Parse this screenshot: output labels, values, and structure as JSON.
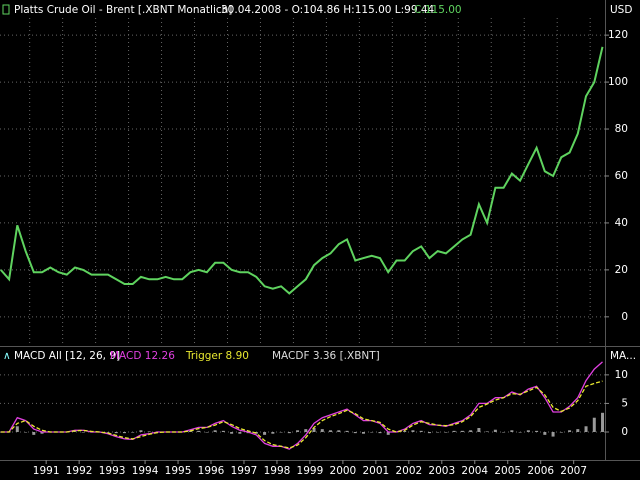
{
  "chart_data": [
    {
      "type": "line",
      "title": "Platts Crude Oil - Brent [.XBNT  Monatlich]",
      "quote": "30.04.2008 - O:104.86 H:115.00 L:99.44",
      "quote_close": "C:115.00",
      "y_label": "USD",
      "x": [
        1990.125,
        1990.375,
        1990.625,
        1990.875,
        1991.125,
        1991.375,
        1991.625,
        1991.875,
        1992.125,
        1992.375,
        1992.625,
        1992.875,
        1993.125,
        1993.375,
        1993.625,
        1993.875,
        1994.125,
        1994.375,
        1994.625,
        1994.875,
        1995.125,
        1995.375,
        1995.625,
        1995.875,
        1996.125,
        1996.375,
        1996.625,
        1996.875,
        1997.125,
        1997.375,
        1997.625,
        1997.875,
        1998.125,
        1998.375,
        1998.625,
        1998.875,
        1999.125,
        1999.375,
        1999.625,
        1999.875,
        2000.125,
        2000.375,
        2000.625,
        2000.875,
        2001.125,
        2001.375,
        2001.625,
        2001.875,
        2002.125,
        2002.375,
        2002.625,
        2002.875,
        2003.125,
        2003.375,
        2003.625,
        2003.875,
        2004.125,
        2004.375,
        2004.625,
        2004.875,
        2005.125,
        2005.375,
        2005.625,
        2005.875,
        2006.125,
        2006.375,
        2006.625,
        2006.875,
        2007.125,
        2007.375,
        2007.625,
        2007.875,
        2008.125,
        2008.375
      ],
      "series": [
        {
          "color": "#5fd35f",
          "values": [
            20,
            16,
            39,
            28,
            19,
            19,
            21,
            19,
            18,
            21,
            20,
            18,
            18,
            18,
            16,
            14,
            14,
            17,
            16,
            16,
            17,
            16,
            16,
            19,
            20,
            19,
            23,
            23,
            20,
            19,
            19,
            17,
            13,
            12,
            13,
            10,
            13,
            16,
            22,
            25,
            27,
            31,
            33,
            24,
            25,
            26,
            25,
            19,
            24,
            24,
            28,
            30,
            25,
            28,
            27,
            30,
            33,
            35,
            48,
            40,
            55,
            55,
            61,
            58,
            65,
            72,
            62,
            60,
            68,
            70,
            78,
            94,
            100,
            115
          ]
        }
      ],
      "xlim": [
        1990.1,
        2008.45
      ],
      "ylim": [
        -12,
        127.3
      ],
      "xticks": [
        1991,
        1992,
        1993,
        1994,
        1995,
        1996,
        1997,
        1998,
        1999,
        2000,
        2001,
        2002,
        2003,
        2004,
        2005,
        2006,
        2007,
        2008
      ],
      "yticks": [
        0,
        20,
        40,
        60,
        80,
        100,
        120
      ],
      "grid": true
    },
    {
      "type": "line",
      "title": "MACD All [12, 26, 9]",
      "y_label": "MA...",
      "x": [
        1990.125,
        1990.375,
        1990.625,
        1990.875,
        1991.125,
        1991.375,
        1991.625,
        1991.875,
        1992.125,
        1992.375,
        1992.625,
        1992.875,
        1993.125,
        1993.375,
        1993.625,
        1993.875,
        1994.125,
        1994.375,
        1994.625,
        1994.875,
        1995.125,
        1995.375,
        1995.625,
        1995.875,
        1996.125,
        1996.375,
        1996.625,
        1996.875,
        1997.125,
        1997.375,
        1997.625,
        1997.875,
        1998.125,
        1998.375,
        1998.625,
        1998.875,
        1999.125,
        1999.375,
        1999.625,
        1999.875,
        2000.125,
        2000.375,
        2000.625,
        2000.875,
        2001.125,
        2001.375,
        2001.625,
        2001.875,
        2002.125,
        2002.375,
        2002.625,
        2002.875,
        2003.125,
        2003.375,
        2003.625,
        2003.875,
        2004.125,
        2004.375,
        2004.625,
        2004.875,
        2005.125,
        2005.375,
        2005.625,
        2005.875,
        2006.125,
        2006.375,
        2006.625,
        2006.875,
        2007.125,
        2007.375,
        2007.625,
        2007.875,
        2008.125,
        2008.375
      ],
      "series": [
        {
          "name": "MACDF 3.36 [.XBNT]",
          "kind": "bar",
          "color": "#9a9a9a",
          "values": [
            0,
            0,
            1,
            0,
            -0.5,
            -0.3,
            0,
            0,
            0,
            0.1,
            0,
            -0.1,
            0,
            -0.1,
            -0.2,
            -0.2,
            -0.1,
            0.3,
            0.1,
            0.1,
            0,
            0,
            0,
            0.2,
            0.2,
            0,
            0.3,
            0.2,
            -0.3,
            -0.3,
            -0.2,
            -0.3,
            -0.5,
            -0.3,
            0,
            -0.2,
            0.3,
            0.5,
            0.7,
            0.5,
            0.3,
            0.3,
            0.2,
            -0.2,
            -0.3,
            0,
            -0.2,
            -0.5,
            0,
            0.2,
            0.3,
            0.2,
            -0.2,
            0,
            -0.1,
            0.2,
            0.2,
            0.3,
            0.7,
            0.1,
            0.4,
            0,
            0.3,
            -0.1,
            0.3,
            0.2,
            -0.5,
            -0.8,
            -0.1,
            0.3,
            0.5,
            1,
            2.5,
            3.36
          ]
        },
        {
          "name": "MACD 12.26",
          "kind": "line",
          "color": "#e040e0",
          "values": [
            0,
            0,
            2.5,
            2,
            0.5,
            0,
            0,
            0,
            0,
            0.3,
            0.3,
            0,
            0,
            -0.3,
            -0.8,
            -1.2,
            -1.3,
            -0.5,
            -0.3,
            0,
            0,
            0,
            0,
            0.4,
            0.8,
            0.8,
            1.5,
            2,
            1,
            0.3,
            0,
            -0.5,
            -2,
            -2.5,
            -2.5,
            -3,
            -2,
            -0.5,
            1.5,
            2.5,
            3,
            3.5,
            4,
            3,
            2,
            2,
            1.5,
            0,
            0,
            0.5,
            1.5,
            2,
            1.3,
            1.2,
            1,
            1.5,
            2,
            3,
            5,
            5,
            6,
            6,
            7,
            6.5,
            7.5,
            8,
            6,
            3.5,
            3.5,
            4.5,
            6,
            9,
            11,
            12.26
          ]
        },
        {
          "name": "Trigger 8.90",
          "kind": "dashed",
          "color": "#e8e830",
          "values": [
            0,
            0,
            1.5,
            2,
            1,
            0.3,
            0,
            0,
            0,
            0.2,
            0.3,
            0.1,
            0,
            -0.2,
            -0.6,
            -1,
            -1.2,
            -0.8,
            -0.4,
            -0.1,
            0,
            0,
            0,
            0.2,
            0.6,
            0.8,
            1.2,
            1.8,
            1.3,
            0.6,
            0.2,
            -0.2,
            -1.5,
            -2.2,
            -2.5,
            -2.8,
            -2.3,
            -1,
            0.8,
            2,
            2.7,
            3.2,
            3.8,
            3.2,
            2.3,
            2,
            1.7,
            0.5,
            0,
            0.3,
            1.2,
            1.8,
            1.5,
            1.2,
            1.1,
            1.3,
            1.8,
            2.7,
            4.3,
            4.9,
            5.6,
            6,
            6.7,
            6.6,
            7.2,
            7.8,
            6.5,
            4.3,
            3.6,
            4.2,
            5.5,
            8,
            8.5,
            8.9
          ]
        }
      ],
      "xlim": [
        1990.1,
        2008.45
      ],
      "ylim": [
        -4.9,
        14.7
      ],
      "xticks": [
        {
          "value": 1991.5,
          "label": "1991"
        },
        {
          "value": 1992.5,
          "label": "1992"
        },
        {
          "value": 1993.5,
          "label": "1993"
        },
        {
          "value": 1994.5,
          "label": "1994"
        },
        {
          "value": 1995.5,
          "label": "1995"
        },
        {
          "value": 1996.5,
          "label": "1996"
        },
        {
          "value": 1997.5,
          "label": "1997"
        },
        {
          "value": 1998.5,
          "label": "1998"
        },
        {
          "value": 1999.5,
          "label": "1999"
        },
        {
          "value": 2000.5,
          "label": "2000"
        },
        {
          "value": 2001.5,
          "label": "2001"
        },
        {
          "value": 2002.5,
          "label": "2002"
        },
        {
          "value": 2003.5,
          "label": "2003"
        },
        {
          "value": 2004.5,
          "label": "2004"
        },
        {
          "value": 2005.5,
          "label": "2005"
        },
        {
          "value": 2006.5,
          "label": "2006"
        },
        {
          "value": 2007.5,
          "label": "2007"
        }
      ],
      "yticks": [
        0,
        5,
        10
      ],
      "grid": true
    }
  ]
}
